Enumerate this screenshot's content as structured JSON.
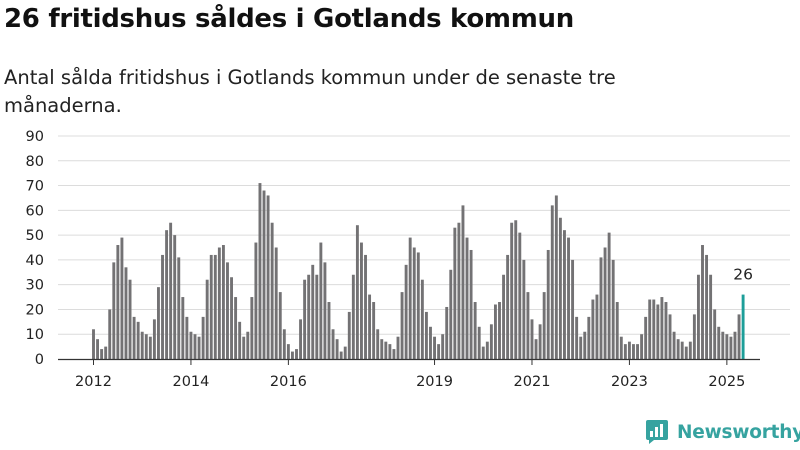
{
  "header": {
    "title": "26 fritidshus såldes i Gotlands kommun",
    "subtitle": "Antal sålda fritidshus i Gotlands kommun under de senaste tre månaderna."
  },
  "brand": {
    "name": "Newsworthy",
    "icon": "newsworthy-logo-icon",
    "color": "#36a3a0"
  },
  "chart_data": {
    "type": "bar",
    "title": "26 fritidshus såldes i Gotlands kommun",
    "subtitle": "Antal sålda fritidshus i Gotlands kommun under de senaste tre månaderna.",
    "xlabel": "",
    "ylabel": "",
    "ylim": [
      0,
      90
    ],
    "yticks": [
      "0",
      "10",
      "20",
      "30",
      "40",
      "50",
      "60",
      "70",
      "80",
      "90"
    ],
    "grid": true,
    "legend": "none",
    "start_month": "2012-01",
    "x_tick_labels": [
      {
        "label": "2012",
        "month": "2012-01"
      },
      {
        "label": "2014",
        "month": "2014-01"
      },
      {
        "label": "2016",
        "month": "2016-01"
      },
      {
        "label": "2019",
        "month": "2019-01"
      },
      {
        "label": "2021",
        "month": "2021-01"
      },
      {
        "label": "2023",
        "month": "2023-01"
      },
      {
        "label": "2025",
        "month": "2025-01"
      }
    ],
    "values": [
      12,
      8,
      4,
      5,
      20,
      39,
      46,
      49,
      37,
      32,
      17,
      15,
      11,
      10,
      9,
      16,
      29,
      42,
      52,
      55,
      50,
      41,
      25,
      17,
      11,
      10,
      9,
      17,
      32,
      42,
      42,
      45,
      46,
      39,
      33,
      25,
      15,
      9,
      11,
      25,
      47,
      71,
      68,
      66,
      55,
      45,
      27,
      12,
      6,
      3,
      4,
      16,
      32,
      34,
      38,
      34,
      47,
      39,
      23,
      12,
      8,
      3,
      5,
      19,
      34,
      54,
      47,
      42,
      26,
      23,
      12,
      8,
      7,
      6,
      4,
      9,
      27,
      38,
      49,
      45,
      43,
      32,
      19,
      13,
      9,
      6,
      10,
      21,
      36,
      53,
      55,
      62,
      49,
      44,
      23,
      13,
      5,
      7,
      14,
      22,
      23,
      34,
      42,
      55,
      56,
      51,
      40,
      27,
      16,
      8,
      14,
      27,
      44,
      62,
      66,
      57,
      52,
      49,
      40,
      17,
      9,
      11,
      17,
      24,
      26,
      41,
      45,
      51,
      40,
      23,
      9,
      6,
      7,
      6,
      6,
      10,
      17,
      24,
      24,
      22,
      25,
      23,
      18,
      11,
      8,
      7,
      5,
      7,
      18,
      34,
      46,
      42,
      34,
      20,
      13,
      11,
      10,
      9,
      11,
      18,
      26
    ],
    "highlight_last": true,
    "bar_color": "#737274",
    "highlight_color": "#1d9e99",
    "annotation": {
      "text": "26",
      "target": "last"
    }
  }
}
